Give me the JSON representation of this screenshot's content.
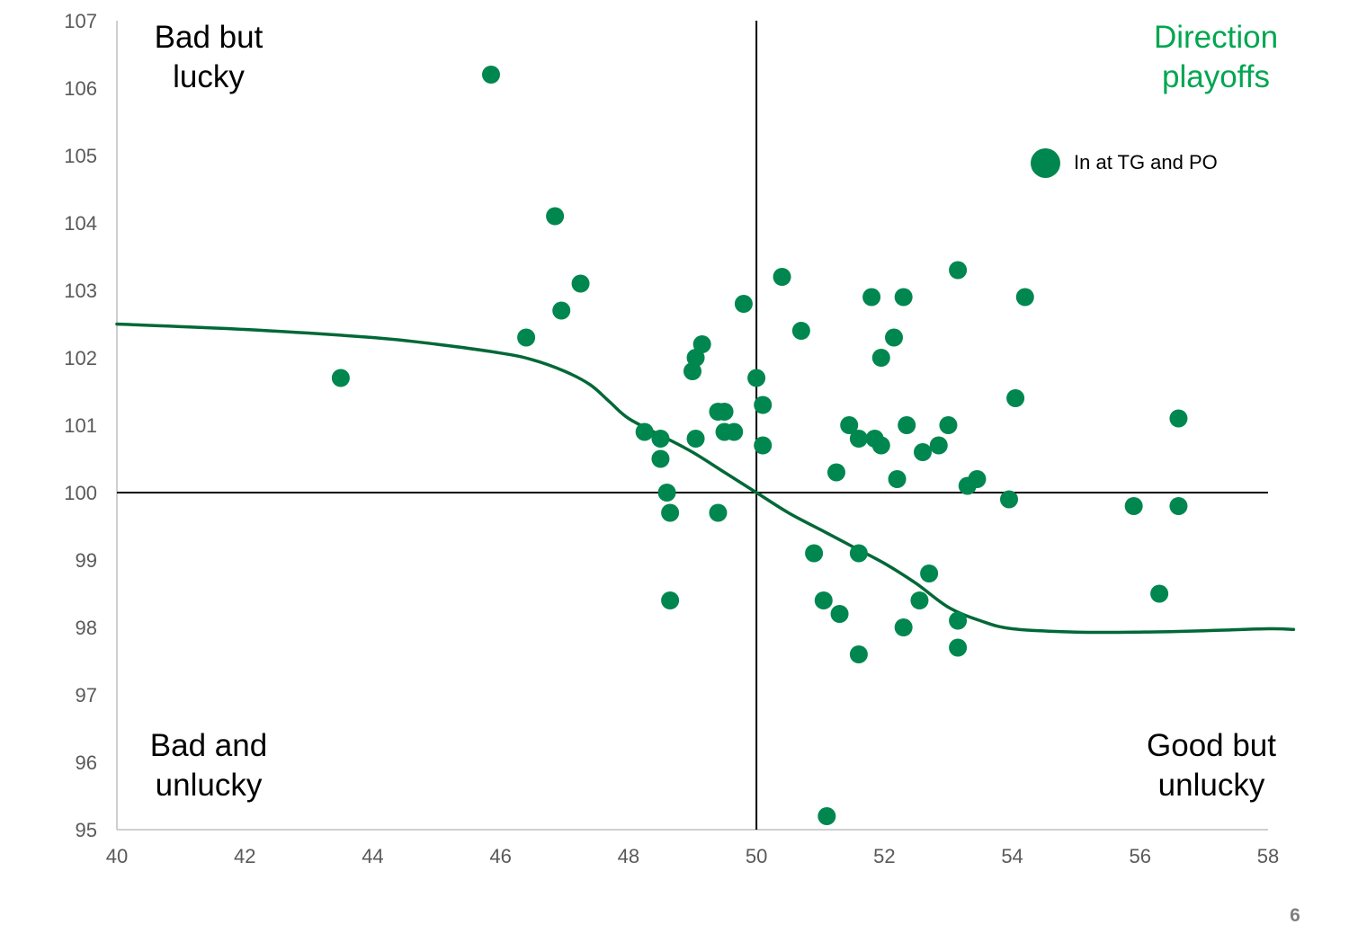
{
  "page_number": "6",
  "colors": {
    "point": "#00874f",
    "curve": "#006837",
    "title": "#00a651",
    "axis": "#000000",
    "frame": "#bfbfbf",
    "ticks": "#595959"
  },
  "chart_data": {
    "type": "scatter",
    "title_lines": [
      "Direction",
      "playoffs"
    ],
    "xlabel": "",
    "ylabel": "",
    "xlim": [
      40,
      58
    ],
    "ylim": [
      95,
      107
    ],
    "x_ticks": [
      40,
      42,
      44,
      46,
      48,
      50,
      52,
      54,
      56,
      58
    ],
    "y_ticks": [
      95,
      96,
      97,
      98,
      99,
      100,
      101,
      102,
      103,
      104,
      105,
      106,
      107
    ],
    "grid": false,
    "crosshair": {
      "x": 50,
      "y": 100
    },
    "legend": {
      "label": "In at TG and PO",
      "position": "top-right"
    },
    "quadrant_labels": {
      "top_left": [
        "Bad but",
        "lucky"
      ],
      "bottom_left": [
        "Bad and",
        "unlucky"
      ],
      "bottom_right": [
        "Good but",
        "unlucky"
      ]
    },
    "series": [
      {
        "name": "In at TG and PO",
        "points": [
          [
            43.5,
            101.7
          ],
          [
            45.85,
            106.2
          ],
          [
            46.85,
            104.1
          ],
          [
            47.25,
            103.1
          ],
          [
            46.95,
            102.7
          ],
          [
            46.4,
            102.3
          ],
          [
            48.25,
            100.9
          ],
          [
            48.5,
            100.8
          ],
          [
            48.5,
            100.5
          ],
          [
            48.6,
            100.0
          ],
          [
            48.65,
            99.7
          ],
          [
            48.65,
            98.4
          ],
          [
            49.0,
            101.8
          ],
          [
            49.05,
            102.0
          ],
          [
            49.15,
            102.2
          ],
          [
            49.05,
            100.8
          ],
          [
            49.4,
            101.2
          ],
          [
            49.5,
            101.2
          ],
          [
            49.5,
            100.9
          ],
          [
            49.65,
            100.9
          ],
          [
            49.4,
            99.7
          ],
          [
            49.8,
            102.8
          ],
          [
            50.0,
            101.7
          ],
          [
            50.1,
            101.3
          ],
          [
            50.1,
            100.7
          ],
          [
            50.4,
            103.2
          ],
          [
            50.7,
            102.4
          ],
          [
            50.9,
            99.1
          ],
          [
            51.05,
            98.4
          ],
          [
            51.1,
            95.2
          ],
          [
            51.25,
            100.3
          ],
          [
            51.3,
            98.2
          ],
          [
            51.45,
            101.0
          ],
          [
            51.6,
            100.8
          ],
          [
            51.6,
            99.1
          ],
          [
            51.6,
            97.6
          ],
          [
            51.8,
            102.9
          ],
          [
            51.85,
            100.8
          ],
          [
            51.95,
            102.0
          ],
          [
            51.95,
            100.7
          ],
          [
            52.15,
            102.3
          ],
          [
            52.2,
            100.2
          ],
          [
            52.3,
            102.9
          ],
          [
            52.3,
            98.0
          ],
          [
            52.35,
            101.0
          ],
          [
            52.55,
            98.4
          ],
          [
            52.6,
            100.6
          ],
          [
            52.7,
            98.8
          ],
          [
            52.85,
            100.7
          ],
          [
            53.0,
            101.0
          ],
          [
            53.15,
            103.3
          ],
          [
            53.15,
            98.1
          ],
          [
            53.15,
            97.7
          ],
          [
            53.3,
            100.1
          ],
          [
            53.45,
            100.2
          ],
          [
            53.95,
            99.9
          ],
          [
            54.05,
            101.4
          ],
          [
            54.2,
            102.9
          ],
          [
            55.9,
            99.8
          ],
          [
            56.3,
            98.5
          ],
          [
            56.6,
            101.1
          ],
          [
            56.6,
            99.8
          ]
        ]
      },
      {
        "name": "",
        "style": "curve",
        "points": [
          [
            40,
            102.5
          ],
          [
            42,
            102.42
          ],
          [
            44,
            102.3
          ],
          [
            45,
            102.2
          ],
          [
            46,
            102.07
          ],
          [
            46.5,
            101.97
          ],
          [
            47,
            101.8
          ],
          [
            47.4,
            101.6
          ],
          [
            47.7,
            101.35
          ],
          [
            48,
            101.1
          ],
          [
            48.5,
            100.85
          ],
          [
            49,
            100.6
          ],
          [
            49.5,
            100.3
          ],
          [
            50,
            100.0
          ],
          [
            50.5,
            99.7
          ],
          [
            51,
            99.45
          ],
          [
            51.5,
            99.2
          ],
          [
            52,
            98.95
          ],
          [
            52.5,
            98.65
          ],
          [
            53,
            98.3
          ],
          [
            53.5,
            98.1
          ],
          [
            54,
            97.98
          ],
          [
            55,
            97.93
          ],
          [
            56,
            97.93
          ],
          [
            57,
            97.95
          ],
          [
            58,
            97.98
          ],
          [
            58.4,
            97.97
          ]
        ]
      }
    ]
  }
}
